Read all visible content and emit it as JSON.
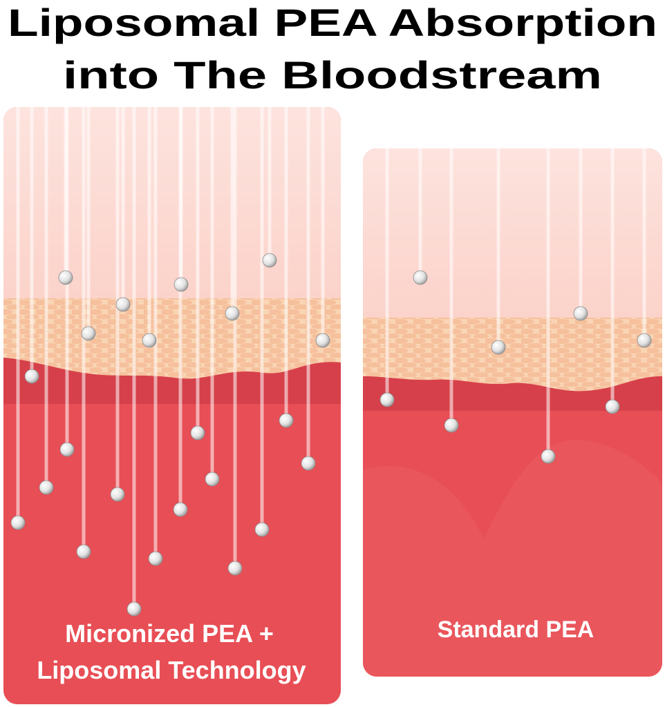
{
  "header": {
    "title_lines": [
      "Liposomal PEA Absorption",
      "into The Bloodstream"
    ]
  },
  "panels": [
    {
      "label_lines": [
        "Micronized PEA +",
        "Liposomal Technology"
      ]
    },
    {
      "label_lines": [
        "Standard PEA"
      ]
    }
  ]
}
